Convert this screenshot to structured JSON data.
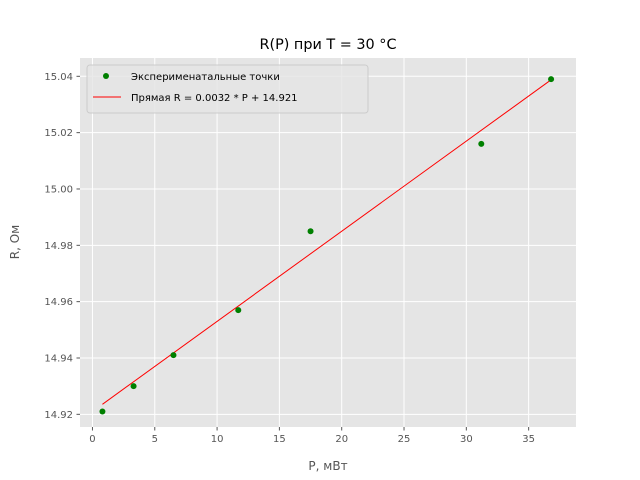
{
  "chart_data": {
    "type": "scatter",
    "title": "R(P) при T = 30 °C",
    "xlabel": "P, мВт",
    "ylabel": "R, Ом",
    "xlim": [
      -1.0,
      38.8
    ],
    "ylim": [
      14.9155,
      15.0465
    ],
    "x_ticks": [
      0,
      5,
      10,
      15,
      20,
      25,
      30,
      35
    ],
    "y_ticks": [
      14.92,
      14.94,
      14.96,
      14.98,
      15.0,
      15.02,
      15.04
    ],
    "x_tick_labels": [
      "0",
      "5",
      "10",
      "15",
      "20",
      "25",
      "30",
      "35"
    ],
    "y_tick_labels": [
      "14.92",
      "14.94",
      "14.96",
      "14.98",
      "15.00",
      "15.02",
      "15.04"
    ],
    "grid": true,
    "legend_position": "upper-left",
    "series": [
      {
        "name": "Эксперименатальные точки",
        "kind": "scatter",
        "color": "#008000",
        "x": [
          0.8,
          3.3,
          6.5,
          11.7,
          17.5,
          31.2,
          36.8
        ],
        "y": [
          14.921,
          14.93,
          14.941,
          14.957,
          14.985,
          15.016,
          15.039
        ]
      },
      {
        "name": "Прямая R = 0.0032 * P + 14.921",
        "kind": "line",
        "color": "#ff0000",
        "slope": 0.0032,
        "intercept": 14.921,
        "x_range": [
          0.8,
          36.8
        ]
      }
    ]
  },
  "colors": {
    "plot_background": "#e5e5e5",
    "grid": "#ffffff",
    "tick": "#555555"
  }
}
